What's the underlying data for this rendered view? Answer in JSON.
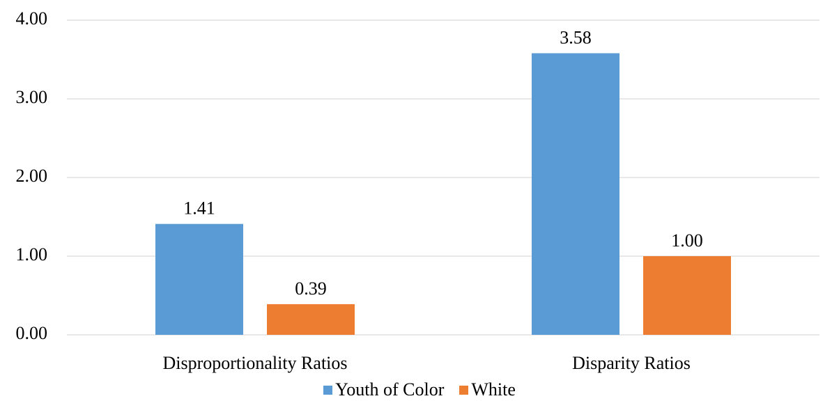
{
  "chart_data": {
    "type": "bar",
    "categories": [
      "Disproportionality Ratios",
      "Disparity Ratios"
    ],
    "series": [
      {
        "name": "Youth of Color",
        "values": [
          1.41,
          3.58
        ],
        "color": "#5b9bd5"
      },
      {
        "name": "White",
        "values": [
          0.39,
          1.0
        ],
        "color": "#ed7d31"
      }
    ],
    "ylim": [
      0,
      4
    ],
    "yticks": [
      "0.00",
      "1.00",
      "2.00",
      "3.00",
      "4.00"
    ],
    "data_labels": [
      [
        "1.41",
        "3.58"
      ],
      [
        "0.39",
        "1.00"
      ]
    ],
    "grid": true,
    "legend_position": "bottom"
  }
}
